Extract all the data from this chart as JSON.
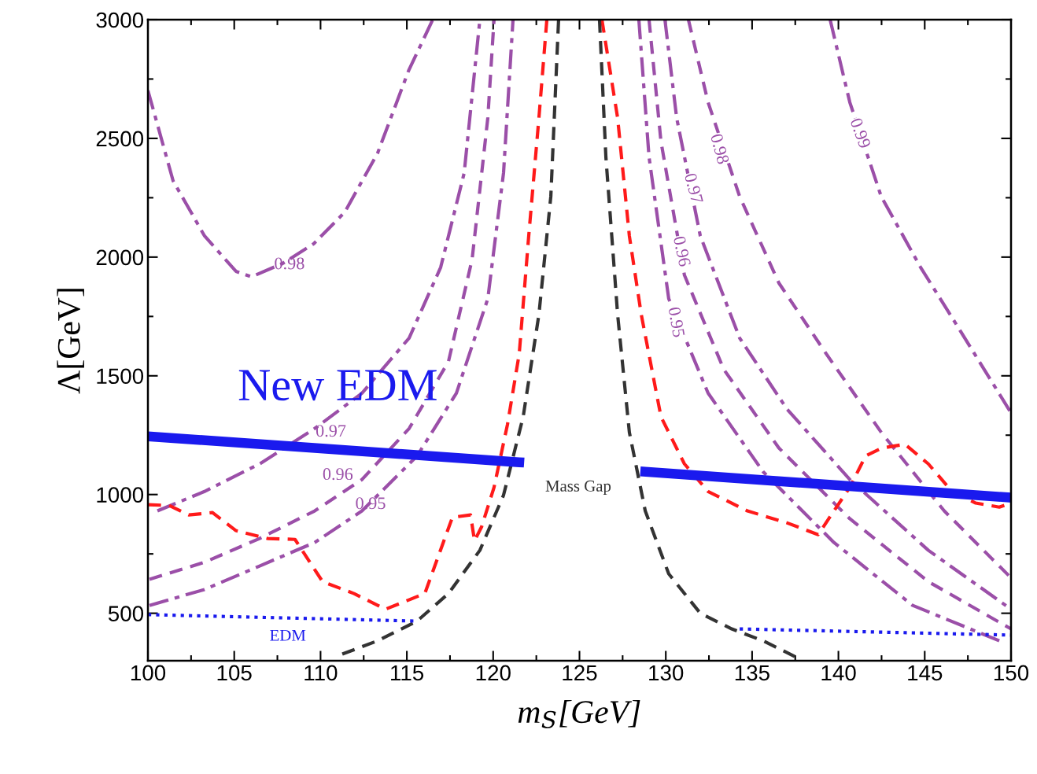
{
  "chart_data": {
    "type": "line",
    "xlabel": "m$_{S}$[GeV]",
    "ylabel": "Λ[GeV]",
    "xlim": [
      100,
      150
    ],
    "ylim": [
      300,
      3000
    ],
    "xticks": [
      100,
      105,
      110,
      115,
      120,
      125,
      130,
      135,
      140,
      145,
      150
    ],
    "yticks": [
      500,
      1000,
      1500,
      2000,
      2500,
      3000
    ],
    "grid": false,
    "legend": false,
    "series": [
      {
        "name": "0.98",
        "color": "#9b4fa8",
        "line_style": "dashdot",
        "x": [
          100,
          101.46,
          103.28,
          105.1,
          106.0,
          107.8,
          109.6,
          111.4,
          113.3,
          115.1,
          116.5
        ],
        "values": [
          2702,
          2321,
          2089,
          1940,
          1917,
          1973,
          2056,
          2189,
          2437,
          2785,
          3000
        ]
      },
      {
        "name": "0.97",
        "color": "#9b4fa8",
        "line_style": "dashdot",
        "x": [
          100.55,
          103.28,
          106.47,
          109.66,
          112.4,
          115.13,
          116.96,
          118.32,
          119.23
        ],
        "values": [
          931,
          1013,
          1129,
          1278,
          1427,
          1659,
          1957,
          2354,
          3000
        ]
      },
      {
        "name": "0.96",
        "color": "#9b4fa8",
        "line_style": "dashed",
        "x": [
          100.09,
          103.28,
          106.47,
          109.66,
          112.4,
          115.13,
          117.41,
          118.78,
          119.69,
          120.05
        ],
        "values": [
          643,
          715,
          815,
          931,
          1063,
          1278,
          1560,
          1990,
          2586,
          3000
        ]
      },
      {
        "name": "0.95",
        "color": "#9b4fa8",
        "line_style": "dashdot",
        "x": [
          100.09,
          103.28,
          106.47,
          109.66,
          112.4,
          115.59,
          117.87,
          119.69,
          120.6,
          121.15
        ],
        "values": [
          533,
          600,
          699,
          798,
          931,
          1162,
          1427,
          1825,
          2354,
          3000
        ]
      },
      {
        "name": "0.99",
        "color": "#9b4fa8",
        "line_style": "dashdot",
        "x": [
          139.52,
          140.66,
          142.48,
          144.76,
          147.04,
          150
        ],
        "values": [
          3000,
          2652,
          2255,
          1957,
          1692,
          1344
        ]
      },
      {
        "name": "0.98",
        "color": "#9b4fa8",
        "line_style": "dashed",
        "x": [
          131.31,
          132.45,
          134.28,
          136.55,
          139.29,
          142.48,
          146.13,
          150
        ],
        "values": [
          3000,
          2652,
          2255,
          1891,
          1593,
          1262,
          931,
          649
        ]
      },
      {
        "name": "0.97",
        "color": "#9b4fa8",
        "line_style": "dashdot",
        "x": [
          129.95,
          130.63,
          132.0,
          134.28,
          137.01,
          140.66,
          145.21,
          150
        ],
        "values": [
          3000,
          2586,
          2089,
          1659,
          1361,
          1063,
          765,
          517
        ]
      },
      {
        "name": "0.96",
        "color": "#9b4fa8",
        "line_style": "dashed",
        "x": [
          129.03,
          129.72,
          131.08,
          133.36,
          136.55,
          140.66,
          145.21,
          150
        ],
        "values": [
          3000,
          2487,
          1924,
          1527,
          1196,
          898,
          633,
          434
        ]
      },
      {
        "name": "0.95",
        "color": "#9b4fa8",
        "line_style": "dashdot",
        "x": [
          128.44,
          129.03,
          130.17,
          132.45,
          135.64,
          139.74,
          144.3,
          149.32
        ],
        "values": [
          3000,
          2421,
          1825,
          1427,
          1096,
          798,
          533,
          384
        ]
      },
      {
        "color": "#ff1a1a",
        "line_style": "dashed",
        "x": [
          100,
          101.23,
          102.37,
          103.74,
          105.1,
          106.93,
          108.52,
          110.12,
          111.94,
          113.76,
          116.04,
          117.64,
          118.69,
          118.92,
          119.33,
          120.05,
          120.83,
          121.51,
          122.06,
          122.65,
          123.11
        ],
        "values": [
          957,
          954,
          914,
          924,
          848,
          815,
          811,
          633,
          583,
          517,
          583,
          904,
          914,
          805,
          864,
          1030,
          1295,
          1593,
          2089,
          2586,
          3000
        ]
      },
      {
        "color": "#ff1a1a",
        "line_style": "dashed",
        "x": [
          126.3,
          127.21,
          127.89,
          128.58,
          129.72,
          131.08,
          132.45,
          134.73,
          137.01,
          138.83,
          139.74,
          140.66,
          141.57,
          142.48,
          143.85,
          145.21,
          146.58,
          147.95,
          149.32,
          150
        ],
        "values": [
          3000,
          2586,
          2089,
          1758,
          1328,
          1129,
          1013,
          931,
          881,
          831,
          931,
          1030,
          1162,
          1195,
          1212,
          1129,
          1013,
          964,
          947,
          964
        ]
      },
      {
        "name": "Mass Gap",
        "color": "#333333",
        "line_style": "dashed",
        "x": [
          111.26,
          113.31,
          115.59,
          117.41,
          119.23,
          120.6,
          121.74,
          122.65,
          123.34,
          123.79,
          125,
          126.16,
          126.53,
          127.21,
          127.89,
          128.81,
          130.17,
          132.0,
          133.82,
          135.64,
          137.47
        ],
        "values": [
          328,
          384,
          467,
          583,
          765,
          997,
          1328,
          1758,
          2255,
          3000,
          null,
          3000,
          2421,
          1758,
          1262,
          931,
          666,
          500,
          434,
          384,
          318
        ]
      },
      {
        "color": "#1a1aee",
        "line_style": "solid",
        "x": [
          100,
          121.51,
          125,
          128.81,
          150
        ],
        "values": [
          1245,
          1136,
          null,
          1096,
          987
        ]
      },
      {
        "name": "EDM",
        "color": "#1a1aee",
        "line_style": "dotted",
        "x": [
          100,
          115.59,
          125,
          134.28,
          150
        ],
        "values": [
          494,
          467,
          null,
          434,
          408
        ]
      }
    ],
    "annotations": [
      "New EDM"
    ]
  }
}
